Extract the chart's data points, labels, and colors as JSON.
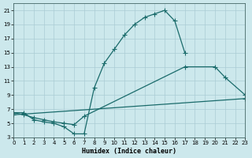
{
  "xlabel": "Humidex (Indice chaleur)",
  "bg_color": "#cce8ec",
  "grid_color": "#aaccd4",
  "line_color": "#1a6b6b",
  "xlim": [
    0,
    23
  ],
  "ylim": [
    3,
    22
  ],
  "xticks": [
    0,
    1,
    2,
    3,
    4,
    5,
    6,
    7,
    8,
    9,
    10,
    11,
    12,
    13,
    14,
    15,
    16,
    17,
    18,
    19,
    20,
    21,
    22,
    23
  ],
  "yticks": [
    3,
    5,
    7,
    9,
    11,
    13,
    15,
    17,
    19,
    21
  ],
  "line1_x": [
    0,
    1,
    2,
    3,
    4,
    5,
    6,
    7,
    8,
    9,
    10,
    11,
    12,
    13,
    14,
    15,
    16,
    17
  ],
  "line1_y": [
    6.5,
    6.5,
    5.5,
    5.2,
    5.0,
    4.5,
    3.5,
    3.5,
    10.0,
    13.5,
    15.5,
    17.5,
    19.0,
    20.0,
    20.5,
    21.0,
    19.5,
    15.0
  ],
  "line2_x": [
    0,
    1,
    2,
    3,
    4,
    5,
    6,
    7,
    17,
    20,
    21,
    23
  ],
  "line2_y": [
    6.5,
    6.2,
    5.8,
    5.5,
    5.2,
    5.0,
    4.8,
    6.0,
    13.0,
    13.0,
    11.5,
    9.0
  ],
  "line3_x": [
    0,
    23
  ],
  "line3_y": [
    6.2,
    8.5
  ]
}
